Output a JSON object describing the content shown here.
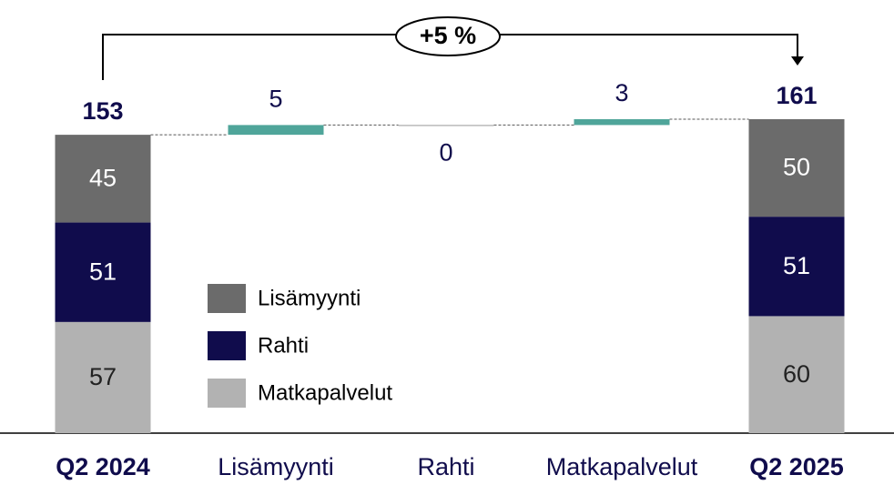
{
  "chart_data": {
    "type": "waterfall",
    "categories": [
      "Q2 2024",
      "Lisämyynti",
      "Rahti",
      "Matkapalvelut",
      "Q2 2025"
    ],
    "series": [
      {
        "name": "Lisämyynti",
        "color": "#6b6b6b",
        "values": [
          45,
          null,
          null,
          null,
          50
        ]
      },
      {
        "name": "Rahti",
        "color": "#100c4c",
        "values": [
          51,
          null,
          null,
          null,
          51
        ]
      },
      {
        "name": "Matkapalvelut",
        "color": "#b2b2b2",
        "values": [
          57,
          null,
          null,
          null,
          60
        ]
      }
    ],
    "totals": [
      153,
      null,
      null,
      null,
      161
    ],
    "changes": [
      null,
      5,
      0,
      3,
      null
    ],
    "change_color": "#4fa59a",
    "annotation": "+5 %"
  }
}
